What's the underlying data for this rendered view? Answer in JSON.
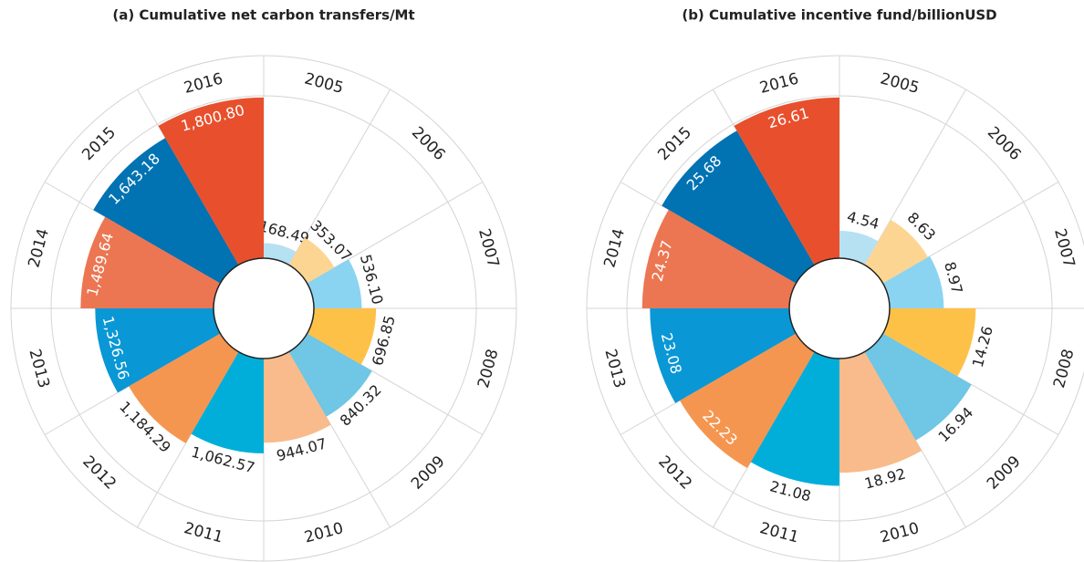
{
  "chart_data": [
    {
      "type": "polar_bar",
      "title": "(a) Cumulative net carbon transfers/Mt",
      "categories": [
        "2005",
        "2006",
        "2007",
        "2008",
        "2009",
        "2010",
        "2011",
        "2012",
        "2013",
        "2014",
        "2015",
        "2016"
      ],
      "values": [
        168.49,
        353.07,
        536.1,
        696.85,
        840.32,
        944.07,
        1062.57,
        1184.29,
        1326.56,
        1489.64,
        1643.18,
        1800.8
      ],
      "value_labels": [
        "168.49",
        "353.07",
        "536.10",
        "696.85",
        "840.32",
        "944.07",
        "1,062.57",
        "1,184.29",
        "1,326.56",
        "1,489.64",
        "1,643.18",
        "1,800.80"
      ],
      "colors": [
        "#b5e1f3",
        "#fdd593",
        "#8ad4f1",
        "#fec148",
        "#6fc6e5",
        "#f9bb8b",
        "#00aed9",
        "#f59650",
        "#0a97d5",
        "#ec7652",
        "#0172b2",
        "#e8502d"
      ],
      "ylim": [
        0,
        1800
      ]
    },
    {
      "type": "polar_bar",
      "title": "(b) Cumulative incentive fund/billionUSD",
      "categories": [
        "2005",
        "2006",
        "2007",
        "2008",
        "2009",
        "2010",
        "2011",
        "2012",
        "2013",
        "2014",
        "2015",
        "2016"
      ],
      "values": [
        4.54,
        8.63,
        8.97,
        14.26,
        16.94,
        18.92,
        21.08,
        22.23,
        23.08,
        24.37,
        25.68,
        26.61
      ],
      "colors": [
        "#b5e1f3",
        "#fdd593",
        "#8ad4f1",
        "#fec148",
        "#6fc6e5",
        "#f9bb8b",
        "#00aed9",
        "#f59650",
        "#0a97d5",
        "#ec7652",
        "#0172b2",
        "#e8502d"
      ],
      "ylim": [
        0,
        26.6
      ]
    }
  ]
}
